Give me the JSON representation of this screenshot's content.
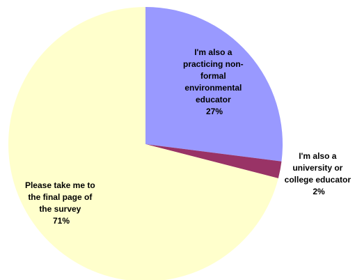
{
  "chart_data": {
    "type": "pie",
    "title": "",
    "start_angle_deg": 0,
    "direction": "clockwise",
    "slices": [
      {
        "label_lines": [
          "I'm also a",
          "practicing non-",
          "formal",
          "environmental",
          "educator"
        ],
        "percent_label": "27%",
        "value": 27,
        "color": "#9999FF"
      },
      {
        "label_lines": [
          "I'm also a",
          "university or",
          "college educator"
        ],
        "percent_label": "2%",
        "value": 2,
        "color": "#993366"
      },
      {
        "label_lines": [
          "Please take me to",
          "the final page of",
          "the survey"
        ],
        "percent_label": "71%",
        "value": 71,
        "color": "#FFFFCC"
      }
    ]
  }
}
